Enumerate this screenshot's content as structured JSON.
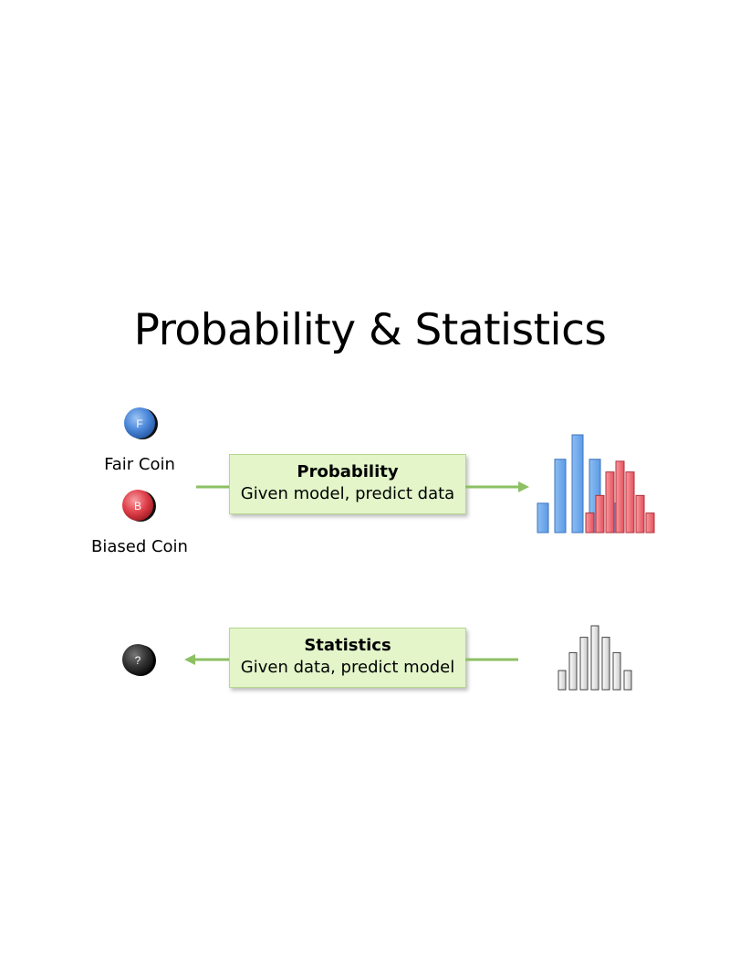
{
  "title": "Probability & Statistics",
  "coins": {
    "fair": {
      "glyph": "F",
      "label": "Fair Coin",
      "color": "#4a86d8"
    },
    "biased": {
      "glyph": "B",
      "label": "Biased Coin",
      "color": "#e0404a"
    },
    "unknown": {
      "glyph": "?",
      "color": "#222222"
    }
  },
  "probability_box": {
    "heading": "Probability",
    "text": "Given model, predict data"
  },
  "statistics_box": {
    "heading": "Statistics",
    "text": "Given data, predict model"
  },
  "colors": {
    "box_fill": "#e3f5c9",
    "box_border": "#b6d78f",
    "arrow": "#8cc063",
    "blue_bar": "#5b9be6",
    "red_bar": "#e8505b",
    "gray_bar": "#e0e0e0"
  },
  "histograms": {
    "blue": [
      0.3,
      0.75,
      1.0,
      0.75,
      0.3
    ],
    "red": [
      0.2,
      0.38,
      0.62,
      0.73,
      0.62,
      0.38,
      0.2
    ],
    "gray": [
      0.3,
      0.58,
      0.82,
      1.0,
      0.82,
      0.58,
      0.3
    ]
  }
}
